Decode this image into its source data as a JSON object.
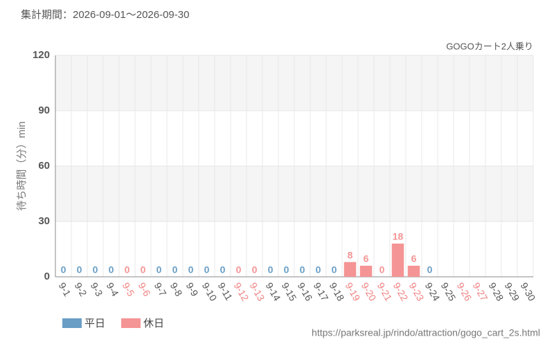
{
  "chart_data": {
    "type": "bar",
    "title": "集計期間：2026-09-01～2026-09-30",
    "subtitle": "GOGOカート2人乗り",
    "y_label": "待ち時間（分）min",
    "source": "https://parksreal.jp/rindo/attraction/gogo_cart_2s.html",
    "categories": [
      "9-1",
      "9-2",
      "9-3",
      "9-4",
      "9-5",
      "9-6",
      "9-7",
      "9-8",
      "9-9",
      "9-10",
      "9-11",
      "9-12",
      "9-13",
      "9-14",
      "9-15",
      "9-16",
      "9-17",
      "9-18",
      "9-19",
      "9-20",
      "9-21",
      "9-22",
      "9-23",
      "9-24",
      "9-25",
      "9-26",
      "9-27",
      "9-28",
      "9-29",
      "9-30"
    ],
    "category_colors": [
      "#555",
      "#555",
      "#555",
      "#555",
      "#f08080",
      "#f08080",
      "#555",
      "#555",
      "#555",
      "#555",
      "#555",
      "#f08080",
      "#f08080",
      "#555",
      "#555",
      "#555",
      "#555",
      "#555",
      "#f08080",
      "#f08080",
      "#f08080",
      "#f08080",
      "#f08080",
      "#555",
      "#555",
      "#f08080",
      "#f08080",
      "#555",
      "#555",
      "#555"
    ],
    "series": [
      {
        "name": "平日",
        "color": "#6a9ec5",
        "values": [
          0,
          0,
          0,
          0,
          null,
          null,
          0,
          0,
          0,
          0,
          0,
          null,
          null,
          0,
          0,
          0,
          0,
          0,
          null,
          null,
          null,
          null,
          null,
          0,
          null,
          null,
          null,
          null,
          null,
          null
        ]
      },
      {
        "name": "休日",
        "color": "#f59494",
        "values": [
          null,
          null,
          null,
          null,
          0,
          0,
          null,
          null,
          null,
          null,
          null,
          0,
          0,
          null,
          null,
          null,
          null,
          null,
          8,
          6,
          0,
          18,
          6,
          null,
          null,
          null,
          null,
          null,
          null,
          null
        ]
      }
    ],
    "ylim": [
      0,
      120
    ],
    "yticks": [
      0,
      30,
      60,
      90,
      120
    ],
    "grid": true
  }
}
